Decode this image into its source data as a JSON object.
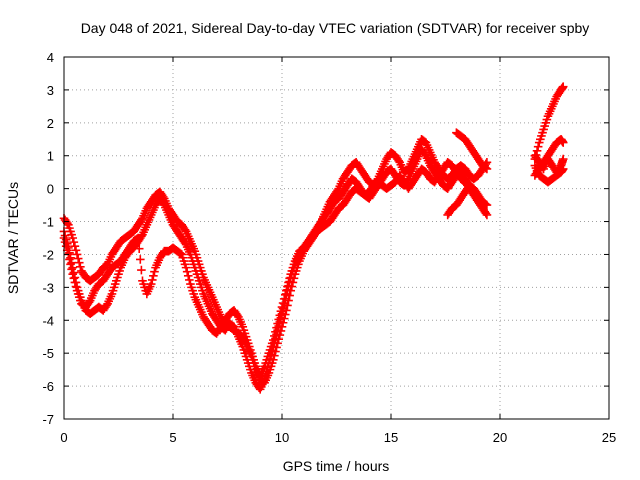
{
  "chart_data": {
    "type": "scatter",
    "title": "Day 048 of 2021, Sidereal Day-to-day VTEC variation (SDTVAR) for receiver spby",
    "xlabel": "GPS time / hours",
    "ylabel": "SDTVAR / TECUs",
    "xlim": [
      0,
      25
    ],
    "ylim": [
      -7,
      4
    ],
    "xticks": [
      "0",
      "5",
      "10",
      "15",
      "20",
      "25"
    ],
    "yticks": [
      "4",
      "3",
      "2",
      "1",
      "0",
      "-1",
      "-2",
      "-3",
      "-4",
      "-5",
      "-6",
      "-7"
    ],
    "grid": true,
    "legend": "none",
    "marker": "+",
    "color": "#ff0000",
    "series": [
      {
        "x": [
          0.0,
          0.2,
          0.4,
          0.6,
          0.8,
          1.0,
          1.2,
          1.4,
          1.6,
          1.8,
          2.0,
          2.2,
          2.4,
          2.6,
          2.8,
          3.0,
          3.2,
          3.4,
          3.6,
          3.8,
          4.0,
          4.2,
          4.4,
          4.6,
          4.8,
          5.0,
          5.2,
          5.4,
          5.6,
          5.8,
          6.0,
          6.2,
          6.4,
          6.6,
          6.8,
          7.0,
          7.2,
          7.4,
          7.6,
          7.8,
          8.0,
          8.2,
          8.4,
          8.6,
          8.8,
          9.0,
          9.2,
          9.4,
          9.6,
          9.8,
          10.0,
          10.2,
          10.4,
          10.6,
          10.8,
          11.0,
          11.2,
          11.4,
          11.6,
          11.8,
          12.0,
          12.2,
          12.4,
          12.6,
          12.8,
          13.0,
          13.2,
          13.4,
          13.6,
          13.8,
          14.0,
          14.2,
          14.4,
          14.6,
          14.8,
          15.0,
          15.2,
          15.4,
          15.6,
          15.8,
          16.0,
          16.2,
          16.4,
          16.6,
          16.8,
          17.0,
          17.2,
          17.4,
          17.6,
          17.8,
          18.0,
          18.2,
          18.4,
          18.6,
          18.8,
          19.0,
          19.2,
          19.4
        ],
        "y": [
          -0.9,
          -1.1,
          -1.5,
          -2.0,
          -2.5,
          -2.7,
          -2.8,
          -2.7,
          -2.6,
          -2.4,
          -2.3,
          -2.0,
          -1.8,
          -1.6,
          -1.5,
          -1.4,
          -1.3,
          -1.1,
          -0.9,
          -0.6,
          -0.4,
          -0.2,
          -0.1,
          -0.3,
          -0.6,
          -0.8,
          -1.0,
          -1.1,
          -1.3,
          -1.6,
          -1.9,
          -2.3,
          -2.7,
          -3.0,
          -3.3,
          -3.6,
          -3.9,
          -4.1,
          -4.2,
          -4.3,
          -4.4,
          -4.5,
          -4.8,
          -5.1,
          -5.5,
          -5.8,
          -5.9,
          -5.6,
          -5.2,
          -4.7,
          -4.2,
          -3.7,
          -3.1,
          -2.6,
          -2.2,
          -1.9,
          -1.7,
          -1.5,
          -1.3,
          -1.0,
          -0.7,
          -0.4,
          -0.2,
          0.0,
          0.3,
          0.5,
          0.7,
          0.8,
          0.6,
          0.4,
          0.2,
          0.1,
          0.3,
          0.6,
          0.9,
          1.1,
          1.0,
          0.8,
          0.5,
          0.6,
          0.9,
          1.2,
          1.5,
          1.4,
          1.1,
          0.8,
          0.6,
          0.4,
          0.3,
          0.4,
          0.6,
          0.7,
          0.6,
          0.4,
          0.3,
          0.4,
          0.6,
          0.8
        ]
      },
      {
        "x": [
          0.0,
          0.2,
          0.4,
          0.6,
          0.8,
          1.0,
          1.2,
          1.4,
          1.6,
          1.8,
          2.0,
          2.2,
          2.4,
          2.6,
          2.8,
          3.0,
          3.2,
          3.4,
          3.6,
          3.8,
          4.0,
          4.2,
          4.4,
          4.6,
          4.8,
          5.0,
          5.2,
          5.4,
          5.6,
          5.8,
          6.0,
          6.2,
          6.4,
          6.6,
          6.8,
          7.0,
          7.2,
          7.4,
          7.6,
          7.8,
          8.0,
          8.2,
          8.4,
          8.6,
          8.8,
          9.0,
          9.2,
          9.4,
          9.6,
          9.8,
          10.0,
          10.2,
          10.4,
          10.6,
          10.8,
          11.0,
          11.2,
          11.4,
          11.6,
          11.8,
          12.0,
          12.2,
          12.4,
          12.6,
          12.8,
          13.0,
          13.2,
          13.4,
          13.6,
          13.8,
          14.0,
          14.2,
          14.4,
          14.6,
          14.8,
          15.0,
          15.2,
          15.4,
          15.6,
          15.8,
          16.0,
          16.2,
          16.4,
          16.6,
          16.8,
          17.0,
          17.2,
          17.4,
          17.6,
          17.8,
          18.0,
          18.2,
          18.4,
          18.6,
          18.8,
          19.0,
          19.2,
          19.4
        ],
        "y": [
          -1.3,
          -1.8,
          -2.4,
          -3.0,
          -3.4,
          -3.7,
          -3.8,
          -3.7,
          -3.6,
          -3.7,
          -3.5,
          -3.2,
          -2.8,
          -2.4,
          -2.1,
          -1.9,
          -1.8,
          -1.6,
          -1.4,
          -1.1,
          -0.8,
          -0.5,
          -0.3,
          -0.5,
          -0.8,
          -1.1,
          -1.3,
          -1.5,
          -1.7,
          -2.0,
          -2.4,
          -2.8,
          -3.2,
          -3.5,
          -3.8,
          -4.0,
          -4.2,
          -4.3,
          -4.1,
          -4.2,
          -4.5,
          -4.8,
          -5.2,
          -5.6,
          -5.9,
          -6.1,
          -5.8,
          -5.3,
          -4.8,
          -4.3,
          -3.8,
          -3.2,
          -2.7,
          -2.3,
          -2.0,
          -1.8,
          -1.6,
          -1.4,
          -1.2,
          -1.0,
          -0.8,
          -0.6,
          -0.4,
          -0.3,
          -0.1,
          0.1,
          0.3,
          0.2,
          0.0,
          -0.2,
          -0.3,
          -0.1,
          0.1,
          0.3,
          0.5,
          0.6,
          0.4,
          0.2,
          0.1,
          0.3,
          0.6,
          0.9,
          1.2,
          1.0,
          0.7,
          0.5,
          0.3,
          0.1,
          0.0,
          0.2,
          0.4,
          0.5,
          0.3,
          0.1,
          0.0,
          -0.2,
          -0.4,
          -0.5
        ]
      },
      {
        "x": [
          0.0,
          0.2,
          0.4,
          0.6,
          0.8,
          1.0,
          1.2,
          1.4,
          1.6,
          1.8,
          2.0,
          2.2,
          2.4,
          2.6,
          2.8,
          3.0,
          3.2,
          3.4,
          3.6,
          3.8,
          4.0,
          4.2,
          4.4,
          4.6,
          4.8,
          5.0,
          5.2,
          5.4,
          5.6,
          5.8,
          6.0,
          6.2,
          6.4,
          6.6,
          6.8,
          7.0,
          7.2,
          7.4,
          7.6,
          7.8,
          8.0,
          8.2,
          8.4,
          8.6,
          8.8,
          9.0,
          9.2,
          9.4,
          9.6,
          9.8,
          10.0,
          10.2,
          10.4,
          10.6,
          10.8,
          11.0,
          11.2,
          11.4,
          11.6,
          11.8,
          12.0,
          12.2,
          12.4,
          12.6,
          12.8,
          13.0,
          13.2,
          13.4,
          13.6,
          13.8,
          14.0,
          14.2,
          14.4,
          14.6,
          14.8,
          15.0,
          15.2,
          15.4,
          15.6,
          15.8,
          16.0,
          16.2,
          16.4,
          16.6,
          16.8,
          17.0,
          17.2,
          17.4,
          17.6,
          17.8,
          18.0,
          18.2,
          18.4,
          18.6,
          18.8,
          19.0,
          19.2,
          19.4
        ],
        "y": [
          -1.5,
          -2.0,
          -2.6,
          -3.1,
          -3.5,
          -3.6,
          -3.4,
          -3.1,
          -2.9,
          -2.8,
          -2.6,
          -2.4,
          -2.3,
          -2.2,
          -2.0,
          -1.8,
          -1.6,
          -1.5,
          -2.8,
          -3.2,
          -2.9,
          -2.4,
          -2.1,
          -1.9,
          -1.9,
          -1.8,
          -1.9,
          -2.0,
          -2.4,
          -2.9,
          -3.3,
          -3.6,
          -3.9,
          -4.1,
          -4.3,
          -4.4,
          -4.2,
          -4.0,
          -3.8,
          -3.7,
          -3.9,
          -4.2,
          -4.6,
          -5.0,
          -5.4,
          -5.7,
          -5.4,
          -5.0,
          -4.6,
          -4.1,
          -3.6,
          -3.1,
          -2.6,
          -2.2,
          -1.9,
          -1.8,
          -1.6,
          -1.5,
          -1.3,
          -1.2,
          -1.1,
          -1.0,
          -0.8,
          -0.6,
          -0.5,
          -0.3,
          -0.1,
          0.0,
          -0.1,
          -0.2,
          -0.1,
          0.1,
          0.2,
          0.1,
          0.0,
          0.1,
          0.2,
          0.4,
          0.2,
          0.0,
          0.2,
          0.4,
          0.6,
          0.5,
          0.3,
          0.2,
          0.4,
          0.6,
          0.8,
          0.7,
          0.5,
          0.3,
          0.2,
          0.0,
          -0.2,
          -0.4,
          -0.6,
          -0.8
        ]
      },
      {
        "x": [
          18.0,
          18.2,
          18.4,
          18.6,
          18.8,
          19.0,
          19.2,
          19.4
        ],
        "y": [
          1.7,
          1.6,
          1.5,
          1.3,
          1.1,
          0.9,
          0.7,
          0.6
        ]
      },
      {
        "x": [
          17.6,
          17.8,
          18.0,
          18.2,
          18.4,
          18.6
        ],
        "y": [
          -0.8,
          -0.6,
          -0.5,
          -0.3,
          -0.1,
          0.1
        ]
      },
      {
        "x": [
          21.6,
          21.8,
          22.0,
          22.2,
          22.4,
          22.6,
          22.8,
          22.9
        ],
        "y": [
          0.9,
          1.4,
          1.8,
          2.2,
          2.5,
          2.8,
          3.0,
          3.1
        ]
      },
      {
        "x": [
          21.6,
          21.8,
          22.0,
          22.2,
          22.4,
          22.6,
          22.8,
          22.9
        ],
        "y": [
          0.4,
          0.6,
          0.8,
          1.0,
          1.2,
          1.4,
          1.5,
          1.4
        ]
      },
      {
        "x": [
          21.6,
          21.8,
          22.0,
          22.2,
          22.4,
          22.6,
          22.8,
          22.9
        ],
        "y": [
          0.7,
          0.4,
          0.3,
          0.2,
          0.3,
          0.4,
          0.5,
          0.6
        ]
      },
      {
        "x": [
          21.6,
          21.8,
          22.0,
          22.2,
          22.4,
          22.6,
          22.8,
          22.9
        ],
        "y": [
          1.0,
          0.8,
          0.6,
          0.9,
          0.7,
          0.5,
          0.7,
          0.9
        ]
      }
    ]
  }
}
